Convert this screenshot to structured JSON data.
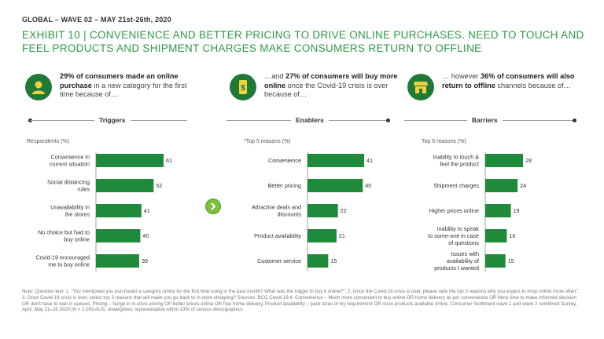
{
  "header": {
    "wave": "GLOBAL – WAVE 02 – MAY 21st-26th, 2020",
    "exhibit": "EXHIBIT 10 | CONVENIENCE AND BETTER PRICING TO DRIVE ONLINE PURCHASES. NEED TO TOUCH AND FEEL PRODUCTS AND SHIPMENT CHARGES MAKE CONSUMERS RETURN TO OFFLINE"
  },
  "columns": [
    {
      "intro_bold": "29% of consumers made an online purchase",
      "intro_rest": " in a new category for the first time because of…",
      "icon": "person-icon",
      "section_title": "Triggers",
      "subtitle": "Respondents (%)"
    },
    {
      "intro_lead": "…and ",
      "intro_bold": "27% of consumers will buy more online",
      "intro_rest": " once the Covid-19 crisis is over because of…",
      "icon": "phone-dollar-icon",
      "section_title": "Enablers",
      "subtitle": "*Top 5 reasons (%)"
    },
    {
      "intro_lead": "… however ",
      "intro_bold": "36% of consumers will also return to offline",
      "intro_rest": " channels because of…",
      "icon": "storefront-icon",
      "section_title": "Barriers",
      "subtitle": "Top 5 reasons (%)"
    }
  ],
  "colors": {
    "bar": "#1f8a3a",
    "accent": "#2e9a43",
    "arrow": "#7cbf3f"
  },
  "chart_data": [
    {
      "type": "bar",
      "orientation": "horizontal",
      "title": "Triggers",
      "categories": [
        "Convenience in current situation",
        "Social distancing rules",
        "Unavailability in the stores",
        "No choice but had to buy online",
        "Covid-19 encouraged me to buy online"
      ],
      "values": [
        61,
        52,
        41,
        40,
        39
      ]
    },
    {
      "type": "bar",
      "orientation": "horizontal",
      "title": "Enablers",
      "categories": [
        "Convenience",
        "Better pricing",
        "Attractive deals and discounts",
        "Product availability",
        "Customer service"
      ],
      "values": [
        41,
        40,
        22,
        21,
        15
      ]
    },
    {
      "type": "bar",
      "orientation": "horizontal",
      "title": "Barriers",
      "categories": [
        "Inability to touch & feel the product",
        "Shipment charges",
        "Higher prices online",
        "Inability to speak to some-one in case of questions",
        "Issues with availability of products I wanted"
      ],
      "values": [
        28,
        24,
        19,
        16,
        15
      ]
    }
  ],
  "notes": "Note: Question text: 1. \"You mentioned you purchased a category online for the first time using in the past month? What was the trigger to buy it online?\"; 2. Once the Covid-19 crisis is over, please rank the top 3 reasons why you expect to shop online more often\"; 3. Once Covid-19 crisis is over, select top 3 reasons that will make you go back to in-store shopping? Sources: BCG Covid-19 4. Convenience – Much more convenient to buy online OR home delivery as per convenience OR More time to make informed decision OR don't have to wait in queues, Pricing – Surge in in-store pricing OR better prices online OR free home delivery, Product availability – pack sizes of my requirement OR more products available online, Consumer Sentiment wave 1 and wave 2 combined Survey, April, May 21–26 2020 (N = 2,093 AUS, unweighted, representative within ±3% of census demographics"
}
